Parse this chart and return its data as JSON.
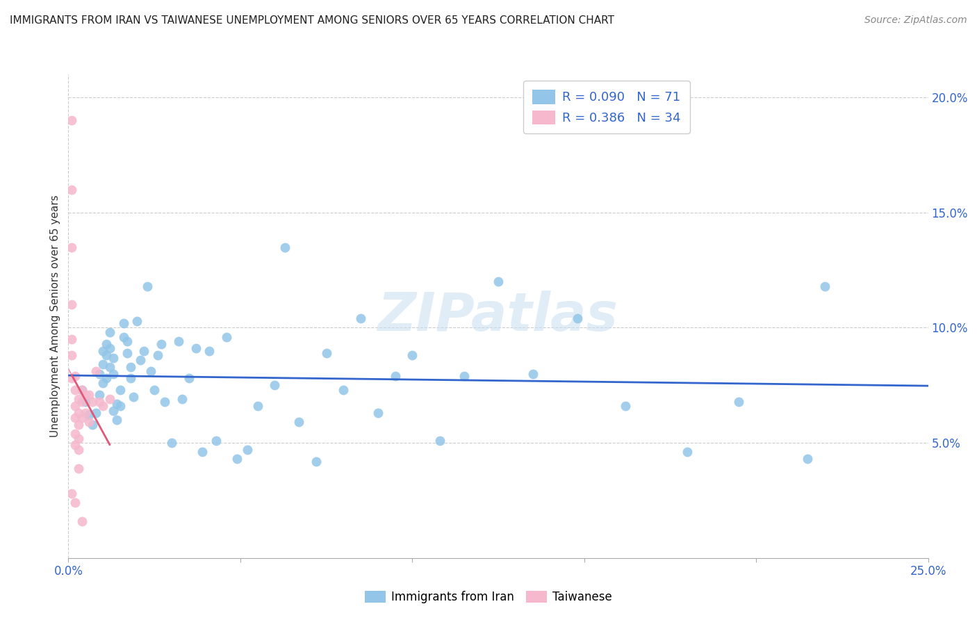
{
  "title": "IMMIGRANTS FROM IRAN VS TAIWANESE UNEMPLOYMENT AMONG SENIORS OVER 65 YEARS CORRELATION CHART",
  "source": "Source: ZipAtlas.com",
  "ylabel": "Unemployment Among Seniors over 65 years",
  "xlim": [
    0.0,
    0.25
  ],
  "ylim": [
    0.0,
    0.21
  ],
  "x_tick_positions": [
    0.0,
    0.05,
    0.1,
    0.15,
    0.2,
    0.25
  ],
  "x_tick_labels": [
    "0.0%",
    "",
    "",
    "",
    "",
    "25.0%"
  ],
  "y_tick_positions": [
    0.05,
    0.1,
    0.15,
    0.2
  ],
  "y_tick_labels": [
    "5.0%",
    "10.0%",
    "15.0%",
    "20.0%"
  ],
  "color_blue": "#92C5E8",
  "color_pink": "#F5B8CC",
  "color_blue_line": "#3366CC",
  "color_pink_line": "#E05878",
  "color_pink_dashed": "#E8A0B4",
  "color_grid": "#cccccc",
  "color_text": "#333333",
  "color_blue_label": "#3366CC",
  "watermark": "ZIPatlas",
  "blue_scatter_x": [
    0.004,
    0.005,
    0.006,
    0.007,
    0.008,
    0.009,
    0.009,
    0.01,
    0.01,
    0.01,
    0.011,
    0.011,
    0.011,
    0.012,
    0.012,
    0.012,
    0.013,
    0.013,
    0.013,
    0.014,
    0.014,
    0.015,
    0.015,
    0.016,
    0.016,
    0.017,
    0.017,
    0.018,
    0.018,
    0.019,
    0.02,
    0.021,
    0.022,
    0.023,
    0.024,
    0.025,
    0.026,
    0.027,
    0.028,
    0.03,
    0.032,
    0.033,
    0.035,
    0.037,
    0.039,
    0.041,
    0.043,
    0.046,
    0.049,
    0.052,
    0.055,
    0.06,
    0.063,
    0.067,
    0.072,
    0.075,
    0.08,
    0.085,
    0.09,
    0.095,
    0.1,
    0.108,
    0.115,
    0.125,
    0.135,
    0.148,
    0.162,
    0.18,
    0.195,
    0.215,
    0.22
  ],
  "blue_scatter_y": [
    0.073,
    0.068,
    0.062,
    0.058,
    0.063,
    0.071,
    0.08,
    0.09,
    0.084,
    0.076,
    0.093,
    0.088,
    0.078,
    0.098,
    0.091,
    0.083,
    0.087,
    0.08,
    0.064,
    0.067,
    0.06,
    0.066,
    0.073,
    0.102,
    0.096,
    0.094,
    0.089,
    0.083,
    0.078,
    0.07,
    0.103,
    0.086,
    0.09,
    0.118,
    0.081,
    0.073,
    0.088,
    0.093,
    0.068,
    0.05,
    0.094,
    0.069,
    0.078,
    0.091,
    0.046,
    0.09,
    0.051,
    0.096,
    0.043,
    0.047,
    0.066,
    0.075,
    0.135,
    0.059,
    0.042,
    0.089,
    0.073,
    0.104,
    0.063,
    0.079,
    0.088,
    0.051,
    0.079,
    0.12,
    0.08,
    0.104,
    0.066,
    0.046,
    0.068,
    0.043,
    0.118
  ],
  "pink_scatter_x": [
    0.001,
    0.001,
    0.001,
    0.001,
    0.001,
    0.001,
    0.001,
    0.001,
    0.002,
    0.002,
    0.002,
    0.002,
    0.002,
    0.002,
    0.002,
    0.003,
    0.003,
    0.003,
    0.003,
    0.003,
    0.003,
    0.004,
    0.004,
    0.004,
    0.004,
    0.005,
    0.005,
    0.006,
    0.006,
    0.007,
    0.008,
    0.009,
    0.01,
    0.012
  ],
  "pink_scatter_y": [
    0.19,
    0.16,
    0.135,
    0.11,
    0.095,
    0.088,
    0.078,
    0.028,
    0.079,
    0.073,
    0.066,
    0.061,
    0.054,
    0.049,
    0.024,
    0.069,
    0.063,
    0.058,
    0.052,
    0.047,
    0.039,
    0.073,
    0.068,
    0.061,
    0.016,
    0.071,
    0.063,
    0.071,
    0.059,
    0.068,
    0.081,
    0.068,
    0.066,
    0.069
  ]
}
